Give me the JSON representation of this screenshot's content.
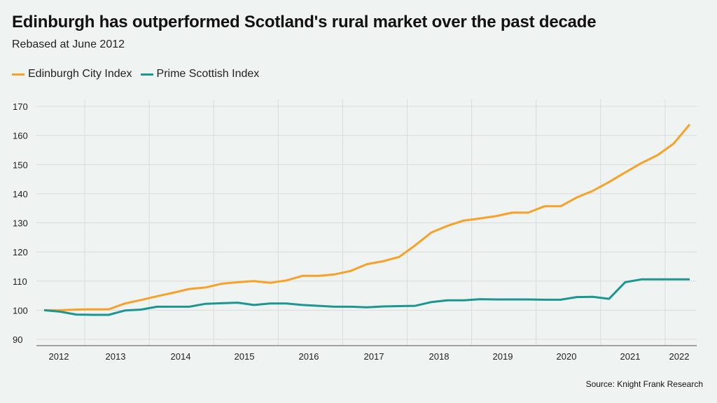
{
  "chart_data": {
    "type": "line",
    "title": "Edinburgh has outperformed Scotland's rural market over the past decade",
    "subtitle": "Rebased at June 2012",
    "xlabel": "",
    "ylabel": "",
    "ylim": [
      90,
      170
    ],
    "yticks": [
      "170",
      "160",
      "150",
      "140",
      "130",
      "120",
      "110",
      "100",
      "90"
    ],
    "ytick_values": [
      170,
      160,
      150,
      140,
      130,
      120,
      110,
      100,
      90
    ],
    "xtick_labels": [
      "2012",
      "2013",
      "2014",
      "2015",
      "2016",
      "2017",
      "2018",
      "2019",
      "2020",
      "2021",
      "2022"
    ],
    "x_start": "June 2012",
    "x_step": "quarter",
    "grid": true,
    "legend_position": "top-left",
    "series": [
      {
        "name": "Edinburgh City Index",
        "color": "#f7a128",
        "values": [
          100,
          100,
          100.2,
          100.3,
          100.3,
          102.3,
          103.5,
          104.8,
          106,
          107.3,
          107.8,
          109.1,
          109.6,
          110,
          109.4,
          110.2,
          111.8,
          111.8,
          112.3,
          113.5,
          115.8,
          116.8,
          118.3,
          122.3,
          126.7,
          129,
          130.8,
          131.5,
          132.3,
          133.5,
          133.5,
          135.7,
          135.7,
          138.7,
          141,
          144,
          147.3,
          150.5,
          153.2,
          157.2,
          163.8
        ]
      },
      {
        "name": "Prime Scottish Index",
        "color": "#1b9690",
        "values": [
          100,
          99.5,
          98.5,
          98.4,
          98.4,
          99.9,
          100.2,
          101.2,
          101.2,
          101.2,
          102.2,
          102.4,
          102.6,
          101.8,
          102.3,
          102.3,
          101.8,
          101.5,
          101.2,
          101.2,
          101,
          101.3,
          101.4,
          101.5,
          102.8,
          103.4,
          103.4,
          103.8,
          103.7,
          103.7,
          103.7,
          103.6,
          103.6,
          104.5,
          104.6,
          103.9,
          109.6,
          110.6,
          110.6,
          110.6,
          110.6
        ]
      }
    ]
  },
  "source": "Source: Knight Frank Research"
}
